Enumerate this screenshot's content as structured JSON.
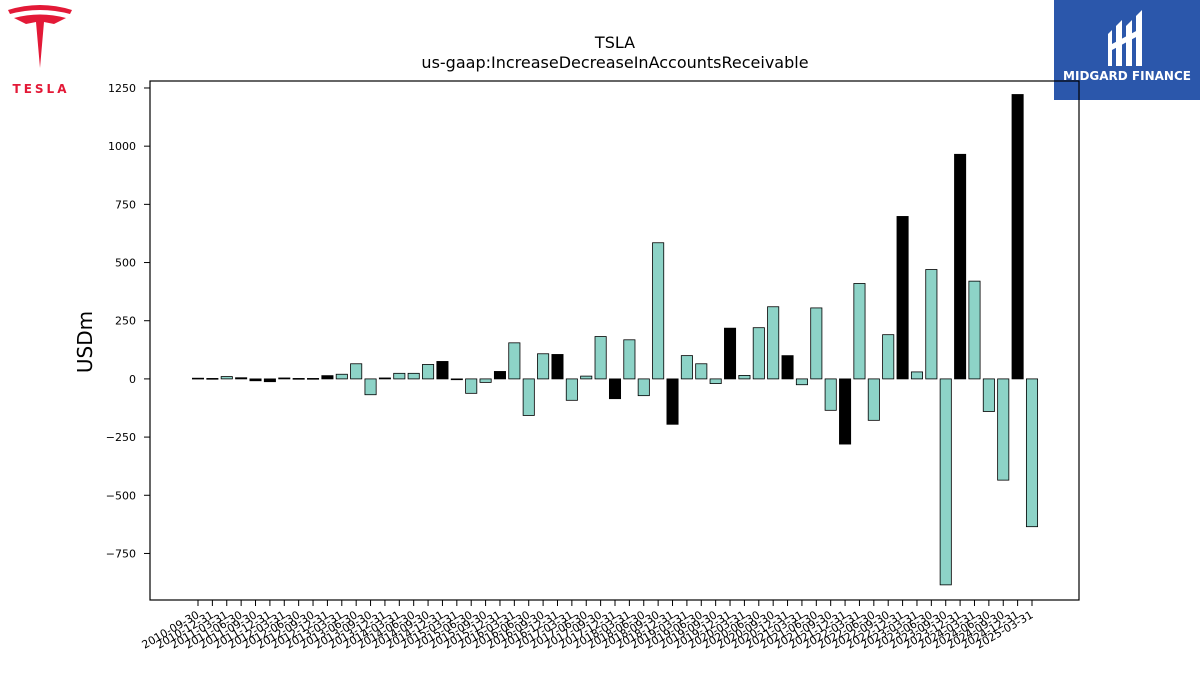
{
  "branding": {
    "left_logo_wordmark": "TESLA",
    "right_logo_name": "MIDGARD FINANCE"
  },
  "chart_data": {
    "type": "bar",
    "title": "TSLA",
    "subtitle": "us-gaap:IncreaseDecreaseInAccountsReceivable",
    "ylabel": "USDm",
    "xlabel": "",
    "ylim": [
      -950,
      1280
    ],
    "yticks": [
      -750,
      -500,
      -250,
      0,
      250,
      500,
      750,
      1000,
      1250
    ],
    "grid": false,
    "colors": {
      "teal": "#8dd3c7",
      "black": "#000000"
    },
    "categories": [
      "2010-09-30",
      "2010-12-31",
      "2011-03-31",
      "2011-06-30",
      "2011-09-30",
      "2011-12-31",
      "2012-03-31",
      "2012-06-30",
      "2012-09-30",
      "2012-12-31",
      "2013-03-31",
      "2013-06-30",
      "2013-09-30",
      "2013-12-31",
      "2014-03-31",
      "2014-06-30",
      "2014-09-30",
      "2014-12-31",
      "2015-03-31",
      "2015-06-30",
      "2015-09-30",
      "2015-12-31",
      "2016-03-31",
      "2016-06-30",
      "2016-09-30",
      "2016-12-31",
      "2017-03-31",
      "2017-06-30",
      "2017-09-30",
      "2017-12-31",
      "2018-03-31",
      "2018-06-30",
      "2018-09-30",
      "2018-12-31",
      "2019-03-31",
      "2019-06-30",
      "2019-09-30",
      "2019-12-31",
      "2020-03-31",
      "2020-06-30",
      "2020-09-30",
      "2020-12-31",
      "2021-03-31",
      "2021-06-30",
      "2021-09-30",
      "2021-12-31",
      "2022-03-31",
      "2022-06-30",
      "2022-09-30",
      "2022-12-31",
      "2023-03-31",
      "2023-06-30",
      "2023-09-30",
      "2023-12-31",
      "2024-03-31",
      "2024-06-30",
      "2024-09-30",
      "2024-12-31",
      "2025-03-31"
    ],
    "values": [
      3,
      2,
      10,
      5,
      -8,
      -12,
      4,
      2,
      2,
      14,
      20,
      65,
      -68,
      4,
      24,
      24,
      62,
      75,
      -2,
      -62,
      -15,
      32,
      155,
      -157,
      108,
      105,
      -92,
      12,
      182,
      -85,
      168,
      -72,
      585,
      -195,
      100,
      65,
      -20,
      218,
      15,
      220,
      310,
      100,
      -25,
      305,
      -135,
      -280,
      410,
      -178,
      190,
      698,
      30,
      470,
      -885,
      965,
      420,
      -140,
      -435,
      1222,
      -635
    ],
    "bar_colors": [
      "black",
      "black",
      "teal",
      "black",
      "black",
      "black",
      "black",
      "black",
      "black",
      "black",
      "teal",
      "teal",
      "teal",
      "black",
      "teal",
      "teal",
      "teal",
      "black",
      "black",
      "teal",
      "teal",
      "black",
      "teal",
      "teal",
      "teal",
      "black",
      "teal",
      "teal",
      "teal",
      "black",
      "teal",
      "teal",
      "teal",
      "black",
      "teal",
      "teal",
      "teal",
      "black",
      "teal",
      "teal",
      "teal",
      "black",
      "teal",
      "teal",
      "teal",
      "black",
      "teal",
      "teal",
      "teal",
      "black",
      "teal",
      "teal",
      "teal",
      "black",
      "teal",
      "teal",
      "teal",
      "black",
      "teal"
    ]
  }
}
